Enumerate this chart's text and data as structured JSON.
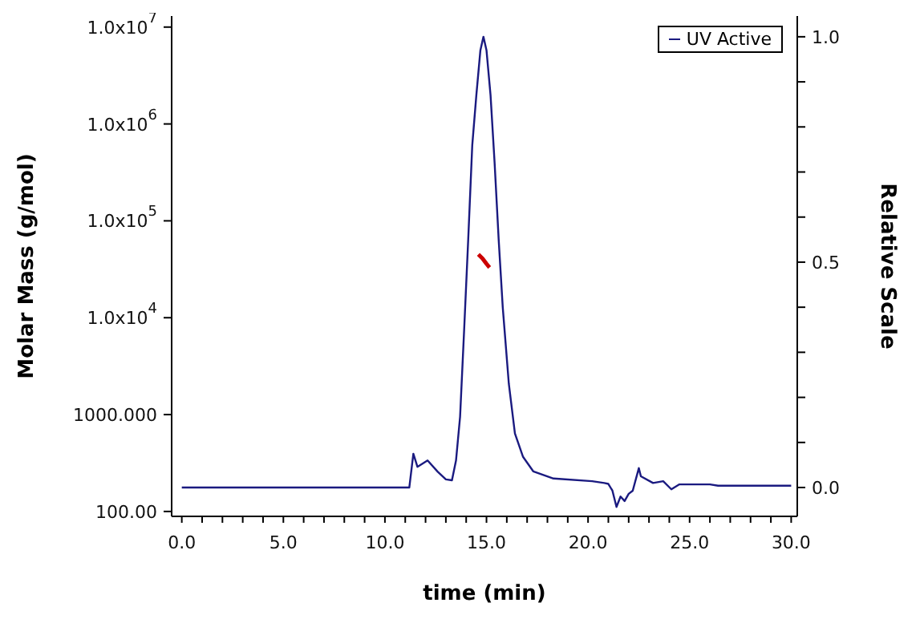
{
  "chart_data": {
    "type": "line",
    "xlabel": "time (min)",
    "ylabel": "Molar Mass (g/mol)",
    "y2label": "Relative Scale",
    "log": "y",
    "legend": "top right",
    "marker": "none",
    "line_style": "solid",
    "xlim": [
      -0.5,
      30.3
    ],
    "xticks": [
      {
        "value": 0,
        "label": "0.0"
      },
      {
        "value": 1,
        "label": null
      },
      {
        "value": 2,
        "label": null
      },
      {
        "value": 3,
        "label": null
      },
      {
        "value": 4,
        "label": null
      },
      {
        "value": 5,
        "label": "5.0"
      },
      {
        "value": 6,
        "label": null
      },
      {
        "value": 7,
        "label": null
      },
      {
        "value": 8,
        "label": null
      },
      {
        "value": 9,
        "label": null
      },
      {
        "value": 10,
        "label": "10.0"
      },
      {
        "value": 11,
        "label": null
      },
      {
        "value": 12,
        "label": null
      },
      {
        "value": 13,
        "label": null
      },
      {
        "value": 14,
        "label": null
      },
      {
        "value": 15,
        "label": "15.0"
      },
      {
        "value": 16,
        "label": null
      },
      {
        "value": 17,
        "label": null
      },
      {
        "value": 18,
        "label": null
      },
      {
        "value": 19,
        "label": null
      },
      {
        "value": 20,
        "label": "20.0"
      },
      {
        "value": 21,
        "label": null
      },
      {
        "value": 22,
        "label": null
      },
      {
        "value": 23,
        "label": null
      },
      {
        "value": 24,
        "label": null
      },
      {
        "value": 25,
        "label": "25.0"
      },
      {
        "value": 26,
        "label": null
      },
      {
        "value": 27,
        "label": null
      },
      {
        "value": 28,
        "label": null
      },
      {
        "value": 29,
        "label": null
      },
      {
        "value": 30,
        "label": "30.0"
      }
    ],
    "ylim": [
      89,
      13000000
    ],
    "yticks": [
      {
        "value": 100,
        "label": "100.00"
      },
      {
        "value": 1000,
        "label": "1000.000"
      },
      {
        "value": 10000,
        "label": "1.0x10$^{4}$"
      },
      {
        "value": 100000,
        "label": "1.0x10$^{5}$"
      },
      {
        "value": 1000000,
        "label": "1.0x10$^{6}$"
      },
      {
        "value": 10000000,
        "label": "1.0x10$^{7}$"
      }
    ],
    "y2lim": [
      -0.064,
      1.046
    ],
    "y2ticks": [
      {
        "value": 0,
        "label": "0.0"
      },
      {
        "value": 0.1,
        "label": null
      },
      {
        "value": 0.2,
        "label": null
      },
      {
        "value": 0.3,
        "label": null
      },
      {
        "value": 0.4,
        "label": null
      },
      {
        "value": 0.5,
        "label": "0.5"
      },
      {
        "value": 0.6,
        "label": null
      },
      {
        "value": 0.7,
        "label": null
      },
      {
        "value": 0.8,
        "label": null
      },
      {
        "value": 0.9,
        "label": null
      },
      {
        "value": 1,
        "label": "1.0"
      }
    ],
    "series": [
      {
        "name": "UV Active",
        "color": "#1a1a80",
        "axis": "y2",
        "x": [
          0,
          11.2,
          11.4,
          11.6,
          12.1,
          12.6,
          13.0,
          13.3,
          13.5,
          13.7,
          13.9,
          14.1,
          14.3,
          14.5,
          14.7,
          14.85,
          15.0,
          15.2,
          15.4,
          15.6,
          15.8,
          16.1,
          16.4,
          16.8,
          17.3,
          18.3,
          20.2,
          20.8,
          21.0,
          21.2,
          21.4,
          21.6,
          21.8,
          22.0,
          22.2,
          22.5,
          22.6,
          23.2,
          23.7,
          24.1,
          24.5,
          26.0,
          26.4,
          30.0
        ],
        "values": [
          0,
          0,
          0.075,
          0.046,
          0.06,
          0.035,
          0.018,
          0.016,
          0.06,
          0.157,
          0.35,
          0.55,
          0.76,
          0.87,
          0.97,
          1.0,
          0.97,
          0.87,
          0.72,
          0.55,
          0.4,
          0.23,
          0.12,
          0.068,
          0.036,
          0.02,
          0.014,
          0.01,
          0.008,
          -0.007,
          -0.043,
          -0.02,
          -0.03,
          -0.014,
          -0.007,
          0.043,
          0.025,
          0.01,
          0.014,
          -0.004,
          0.007,
          0.007,
          0.004,
          0.004
        ]
      },
      {
        "color": "#cc0000",
        "x": [
          14.6,
          14.8,
          15.0,
          15.15
        ],
        "values": [
          45000,
          41000,
          36000,
          33000
        ]
      }
    ]
  }
}
